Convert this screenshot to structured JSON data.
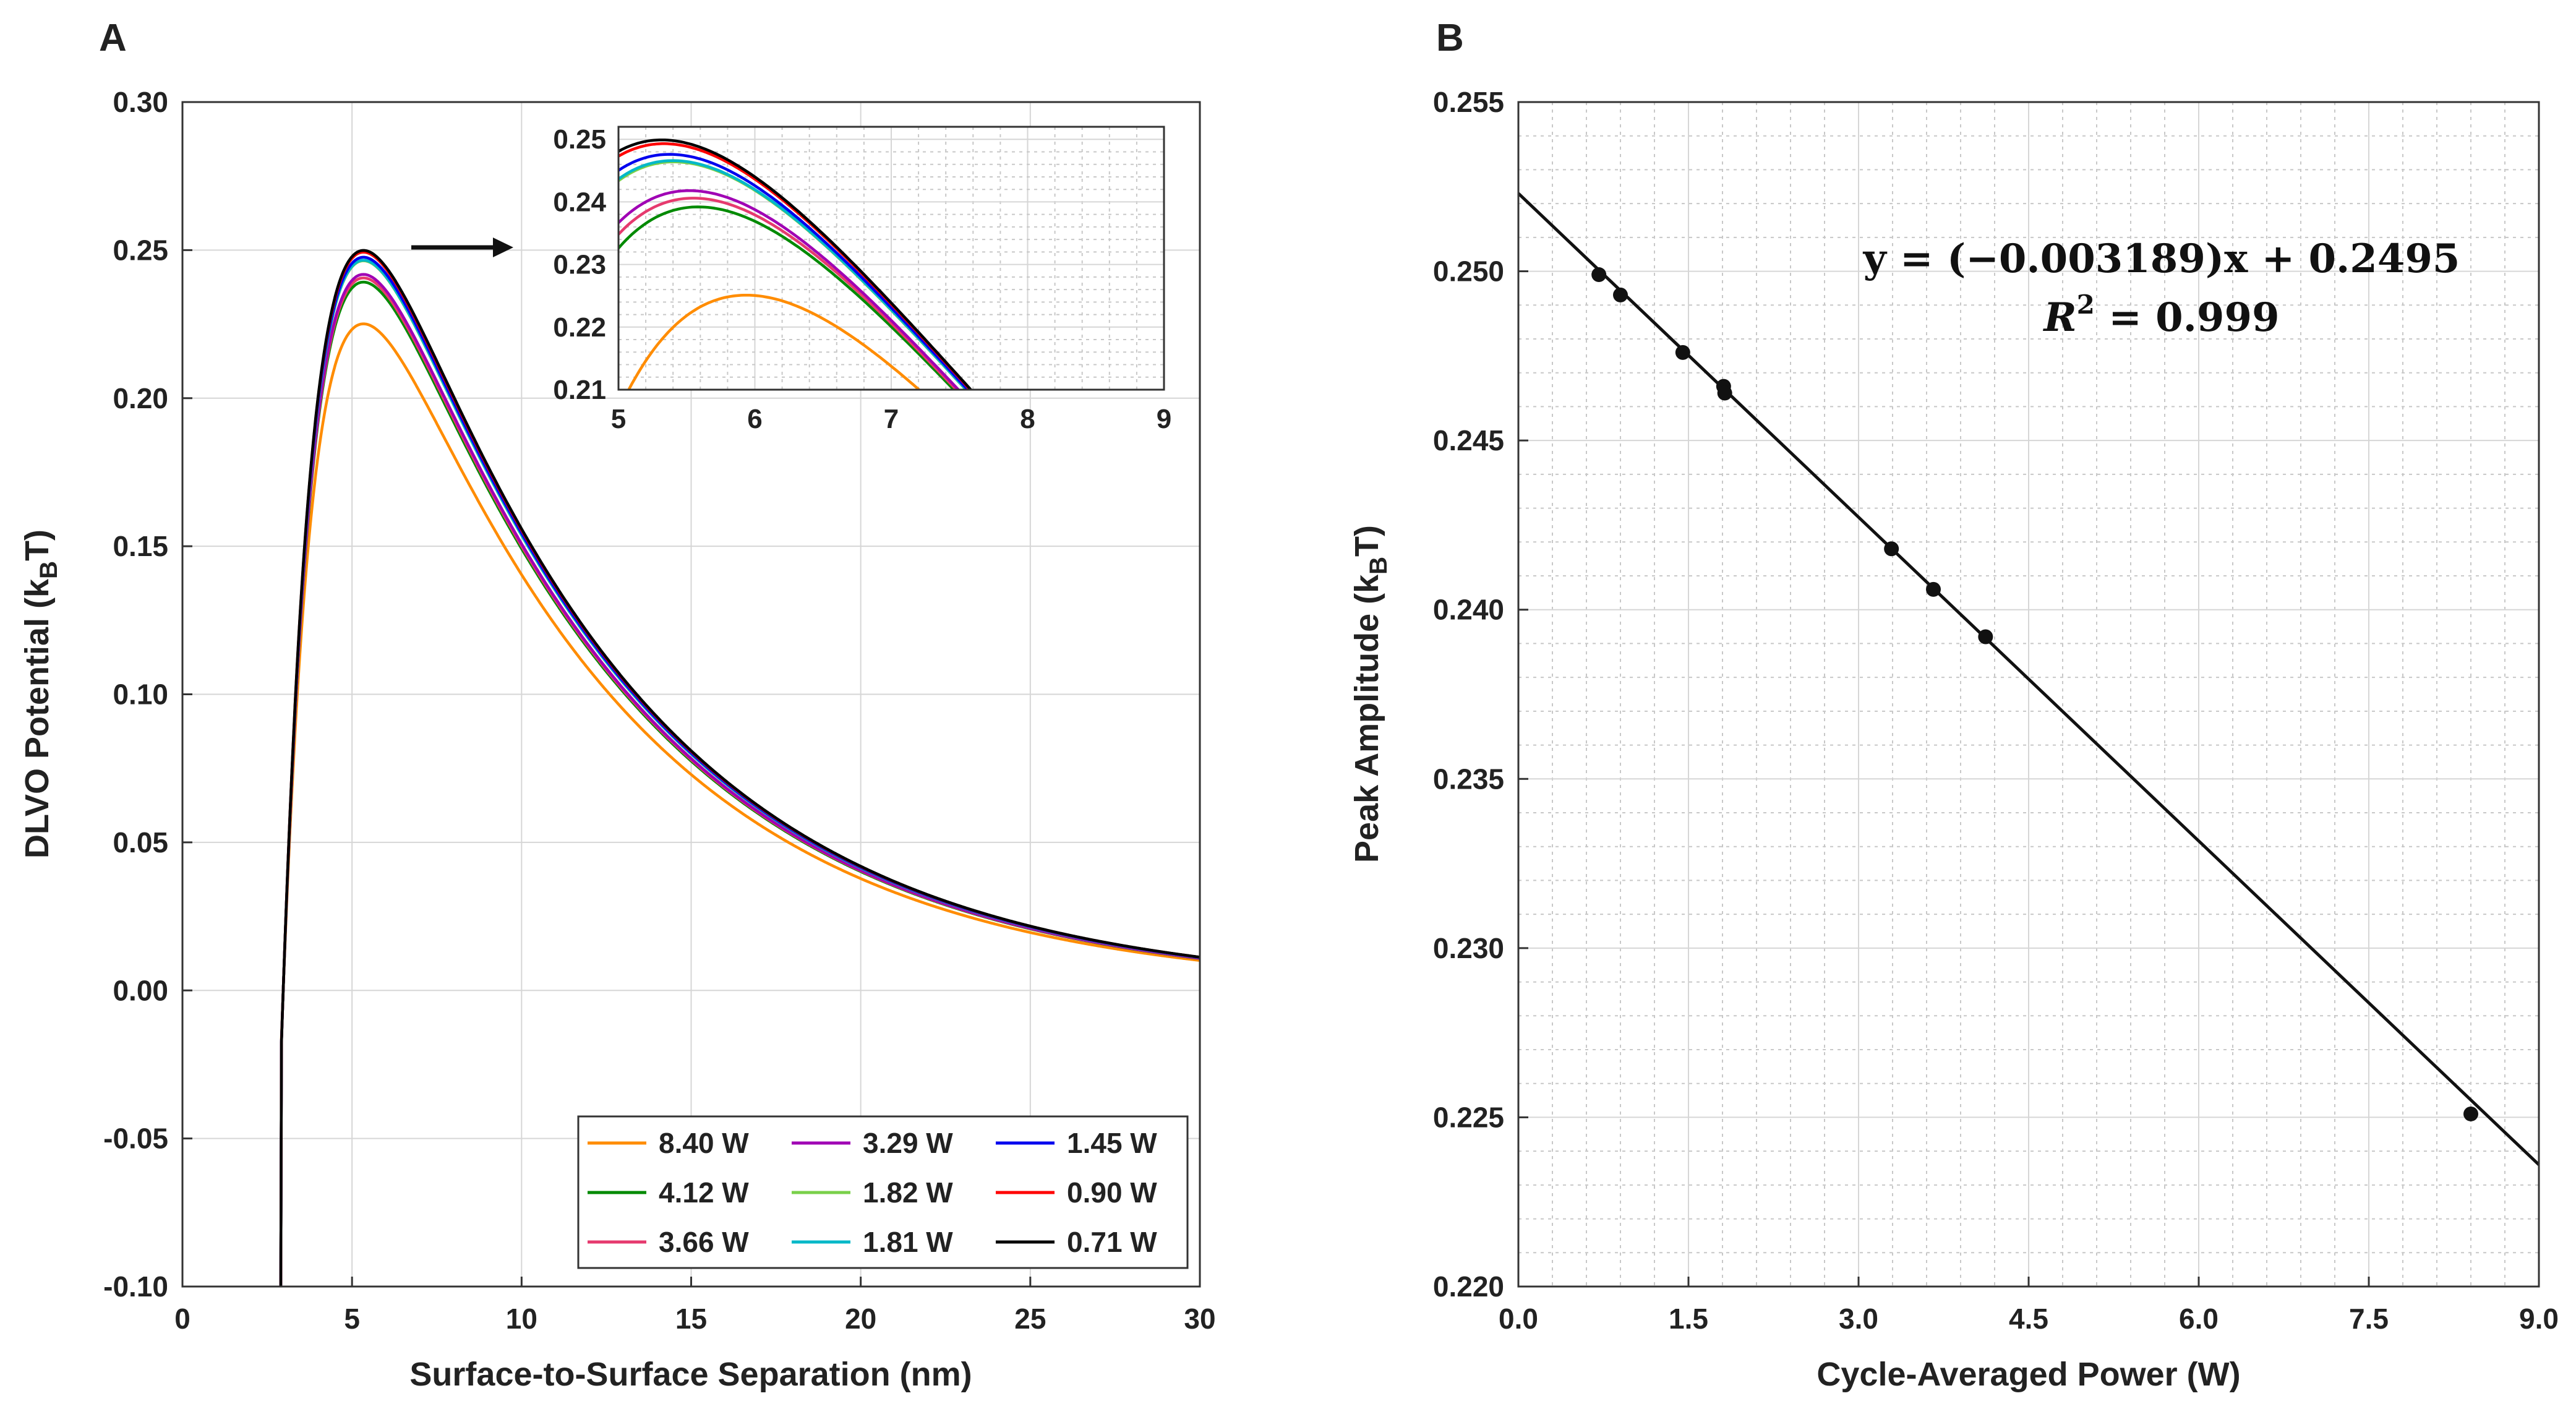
{
  "chart_data": [
    {
      "panel": "A",
      "type": "line",
      "xlabel": "Surface-to-Surface Separation (nm)",
      "ylabel_main": "DLVO Potential (k",
      "ylabel_sub": "B",
      "ylabel_end": "T)",
      "xlim": [
        0,
        30
      ],
      "ylim": [
        -0.1,
        0.3
      ],
      "xticks": [
        "0",
        "5",
        "10",
        "15",
        "20",
        "25",
        "30"
      ],
      "xtick_values": [
        0,
        5,
        10,
        15,
        20,
        25,
        30
      ],
      "yticks": [
        "-0.10",
        "-0.05",
        "0.00",
        "0.05",
        "0.10",
        "0.15",
        "0.20",
        "0.25",
        "0.30"
      ],
      "ytick_values": [
        -0.1,
        -0.05,
        0,
        0.05,
        0.1,
        0.15,
        0.2,
        0.25,
        0.3
      ],
      "grid": true,
      "legend_position": "bottom-right",
      "series": [
        {
          "name": "8.40 W",
          "color": "#ff8c00",
          "peak": 0.2251
        },
        {
          "name": "4.12 W",
          "color": "#008a00",
          "peak": 0.2392
        },
        {
          "name": "3.66 W",
          "color": "#e63a6e",
          "peak": 0.2406
        },
        {
          "name": "3.29 W",
          "color": "#a000b4",
          "peak": 0.2418
        },
        {
          "name": "1.82 W",
          "color": "#7ad04a",
          "peak": 0.2464
        },
        {
          "name": "1.81 W",
          "color": "#00b8c8",
          "peak": 0.2466
        },
        {
          "name": "1.45 W",
          "color": "#0000ee",
          "peak": 0.2476
        },
        {
          "name": "0.90 W",
          "color": "#ff0000",
          "peak": 0.2493
        },
        {
          "name": "0.71 W",
          "color": "#000000",
          "peak": 0.2499
        }
      ],
      "inset": {
        "xlim": [
          5,
          9
        ],
        "ylim": [
          0.21,
          0.252
        ],
        "xticks": [
          "5",
          "6",
          "7",
          "8",
          "9"
        ],
        "xtick_values": [
          5,
          6,
          7,
          8,
          9
        ],
        "yticks": [
          "0.21",
          "0.22",
          "0.23",
          "0.24",
          "0.25"
        ],
        "ytick_values": [
          0.21,
          0.22,
          0.23,
          0.24,
          0.25
        ]
      }
    },
    {
      "panel": "B",
      "type": "scatter",
      "xlabel": "Cycle-Averaged Power (W)",
      "ylabel_main": "Peak Amplitude (k",
      "ylabel_sub": "B",
      "ylabel_end": "T)",
      "xlim": [
        0,
        9
      ],
      "ylim": [
        0.22,
        0.255
      ],
      "xticks": [
        "0.0",
        "1.5",
        "3.0",
        "4.5",
        "6.0",
        "7.5",
        "9.0"
      ],
      "xtick_values": [
        0,
        1.5,
        3,
        4.5,
        6,
        7.5,
        9
      ],
      "yticks": [
        "0.220",
        "0.225",
        "0.230",
        "0.235",
        "0.240",
        "0.245",
        "0.250",
        "0.255"
      ],
      "ytick_values": [
        0.22,
        0.225,
        0.23,
        0.235,
        0.24,
        0.245,
        0.25,
        0.255
      ],
      "grid": true,
      "x": [
        0.71,
        0.9,
        1.45,
        1.81,
        1.82,
        3.29,
        3.66,
        4.12,
        8.4
      ],
      "y": [
        0.2499,
        0.2493,
        0.2476,
        0.2466,
        0.2464,
        0.2418,
        0.2406,
        0.2392,
        0.2251
      ],
      "fit": {
        "slope": -0.003189,
        "intercept": 0.2495
      },
      "equation_line1": "y = (−0.003189)x + 0.2495",
      "equation_line2_prefix": "R",
      "equation_line2_sup": "2",
      "equation_line2_suffix": " = 0.999"
    }
  ],
  "labels": {
    "panel_a": "A",
    "panel_b": "B"
  }
}
